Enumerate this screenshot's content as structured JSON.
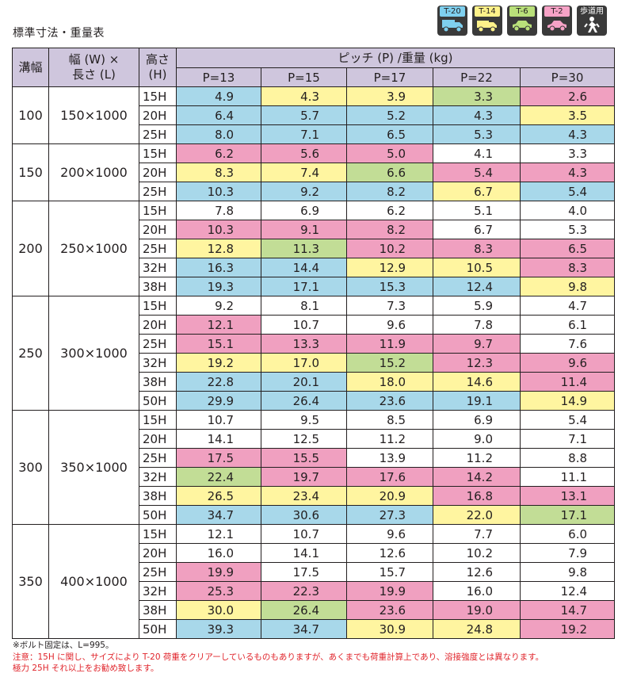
{
  "page_title": "標準寸法・重量表",
  "load_classes": [
    {
      "label": "T-20",
      "color": "#7fd0ef",
      "icon": "truck-icon"
    },
    {
      "label": "T-14",
      "color": "#fff28a",
      "icon": "truck-icon"
    },
    {
      "label": "T-6",
      "color": "#b9e07a",
      "icon": "car-icon"
    },
    {
      "label": "T-2",
      "color": "#f6a2c6",
      "icon": "car-icon"
    },
    {
      "label": "歩道用",
      "color": "#ffffff",
      "icon": "pedestrian-icon"
    }
  ],
  "color_key": {
    "b": "#a8d8ea",
    "y": "#fff5a0",
    "g": "#c2dd96",
    "p": "#f0a0c0",
    "w": "#ffffff"
  },
  "table": {
    "col_width_label": "溝幅",
    "col_size_label_1": "幅 (W) ×",
    "col_size_label_2": "長さ (L)",
    "col_height_label_1": "高さ",
    "col_height_label_2": "(H)",
    "pitch_header": "ピッチ (P) /重量 (kg)",
    "pitches": [
      "P=13",
      "P=15",
      "P=17",
      "P=22",
      "P=30"
    ],
    "groups": [
      {
        "width": "100",
        "size": "150×1000",
        "rows": [
          {
            "h": "15H",
            "values": [
              "4.9",
              "4.3",
              "3.9",
              "3.3",
              "2.6"
            ],
            "colors": [
              "b",
              "y",
              "y",
              "g",
              "p"
            ]
          },
          {
            "h": "20H",
            "values": [
              "6.4",
              "5.7",
              "5.2",
              "4.3",
              "3.5"
            ],
            "colors": [
              "b",
              "b",
              "b",
              "b",
              "y"
            ]
          },
          {
            "h": "25H",
            "values": [
              "8.0",
              "7.1",
              "6.5",
              "5.3",
              "4.3"
            ],
            "colors": [
              "b",
              "b",
              "b",
              "b",
              "b"
            ]
          }
        ]
      },
      {
        "width": "150",
        "size": "200×1000",
        "rows": [
          {
            "h": "15H",
            "values": [
              "6.2",
              "5.6",
              "5.0",
              "4.1",
              "3.3"
            ],
            "colors": [
              "p",
              "p",
              "p",
              "w",
              "w"
            ]
          },
          {
            "h": "20H",
            "values": [
              "8.3",
              "7.4",
              "6.6",
              "5.4",
              "4.3"
            ],
            "colors": [
              "y",
              "y",
              "g",
              "p",
              "p"
            ]
          },
          {
            "h": "25H",
            "values": [
              "10.3",
              "9.2",
              "8.2",
              "6.7",
              "5.4"
            ],
            "colors": [
              "b",
              "b",
              "b",
              "y",
              "b"
            ]
          }
        ]
      },
      {
        "width": "200",
        "size": "250×1000",
        "rows": [
          {
            "h": "15H",
            "values": [
              "7.8",
              "6.9",
              "6.2",
              "5.1",
              "4.0"
            ],
            "colors": [
              "w",
              "w",
              "w",
              "w",
              "w"
            ]
          },
          {
            "h": "20H",
            "values": [
              "10.3",
              "9.1",
              "8.2",
              "6.7",
              "5.3"
            ],
            "colors": [
              "p",
              "p",
              "p",
              "w",
              "w"
            ]
          },
          {
            "h": "25H",
            "values": [
              "12.8",
              "11.3",
              "10.2",
              "8.3",
              "6.5"
            ],
            "colors": [
              "y",
              "g",
              "p",
              "p",
              "p"
            ]
          },
          {
            "h": "32H",
            "values": [
              "16.3",
              "14.4",
              "12.9",
              "10.5",
              "8.3"
            ],
            "colors": [
              "b",
              "b",
              "y",
              "y",
              "p"
            ]
          },
          {
            "h": "38H",
            "values": [
              "19.3",
              "17.1",
              "15.3",
              "12.4",
              "9.8"
            ],
            "colors": [
              "b",
              "b",
              "b",
              "b",
              "y"
            ]
          }
        ]
      },
      {
        "width": "250",
        "size": "300×1000",
        "rows": [
          {
            "h": "15H",
            "values": [
              "9.2",
              "8.1",
              "7.3",
              "5.9",
              "4.7"
            ],
            "colors": [
              "w",
              "w",
              "w",
              "w",
              "w"
            ]
          },
          {
            "h": "20H",
            "values": [
              "12.1",
              "10.7",
              "9.6",
              "7.8",
              "6.1"
            ],
            "colors": [
              "p",
              "w",
              "w",
              "w",
              "w"
            ]
          },
          {
            "h": "25H",
            "values": [
              "15.1",
              "13.3",
              "11.9",
              "9.7",
              "7.6"
            ],
            "colors": [
              "p",
              "p",
              "p",
              "p",
              "w"
            ]
          },
          {
            "h": "32H",
            "values": [
              "19.2",
              "17.0",
              "15.2",
              "12.3",
              "9.6"
            ],
            "colors": [
              "y",
              "y",
              "g",
              "p",
              "p"
            ]
          },
          {
            "h": "38H",
            "values": [
              "22.8",
              "20.1",
              "18.0",
              "14.6",
              "11.4"
            ],
            "colors": [
              "b",
              "b",
              "y",
              "y",
              "p"
            ]
          },
          {
            "h": "50H",
            "values": [
              "29.9",
              "26.4",
              "23.6",
              "19.1",
              "14.9"
            ],
            "colors": [
              "b",
              "b",
              "b",
              "b",
              "y"
            ]
          }
        ]
      },
      {
        "width": "300",
        "size": "350×1000",
        "rows": [
          {
            "h": "15H",
            "values": [
              "10.7",
              "9.5",
              "8.5",
              "6.9",
              "5.4"
            ],
            "colors": [
              "w",
              "w",
              "w",
              "w",
              "w"
            ]
          },
          {
            "h": "20H",
            "values": [
              "14.1",
              "12.5",
              "11.2",
              "9.0",
              "7.1"
            ],
            "colors": [
              "w",
              "w",
              "w",
              "w",
              "w"
            ]
          },
          {
            "h": "25H",
            "values": [
              "17.5",
              "15.5",
              "13.9",
              "11.2",
              "8.8"
            ],
            "colors": [
              "p",
              "p",
              "w",
              "w",
              "w"
            ]
          },
          {
            "h": "32H",
            "values": [
              "22.4",
              "19.7",
              "17.6",
              "14.2",
              "11.1"
            ],
            "colors": [
              "g",
              "p",
              "p",
              "p",
              "w"
            ]
          },
          {
            "h": "38H",
            "values": [
              "26.5",
              "23.4",
              "20.9",
              "16.8",
              "13.1"
            ],
            "colors": [
              "y",
              "y",
              "y",
              "p",
              "p"
            ]
          },
          {
            "h": "50H",
            "values": [
              "34.7",
              "30.6",
              "27.3",
              "22.0",
              "17.1"
            ],
            "colors": [
              "b",
              "b",
              "b",
              "y",
              "g"
            ]
          }
        ]
      },
      {
        "width": "350",
        "size": "400×1000",
        "rows": [
          {
            "h": "15H",
            "values": [
              "12.1",
              "10.7",
              "9.6",
              "7.7",
              "6.0"
            ],
            "colors": [
              "w",
              "w",
              "w",
              "w",
              "w"
            ]
          },
          {
            "h": "20H",
            "values": [
              "16.0",
              "14.1",
              "12.6",
              "10.2",
              "7.9"
            ],
            "colors": [
              "w",
              "w",
              "w",
              "w",
              "w"
            ]
          },
          {
            "h": "25H",
            "values": [
              "19.9",
              "17.5",
              "15.7",
              "12.6",
              "9.8"
            ],
            "colors": [
              "p",
              "w",
              "w",
              "w",
              "w"
            ]
          },
          {
            "h": "32H",
            "values": [
              "25.3",
              "22.3",
              "19.9",
              "16.0",
              "12.4"
            ],
            "colors": [
              "p",
              "p",
              "p",
              "w",
              "w"
            ]
          },
          {
            "h": "38H",
            "values": [
              "30.0",
              "26.4",
              "23.6",
              "19.0",
              "14.7"
            ],
            "colors": [
              "y",
              "g",
              "p",
              "p",
              "p"
            ]
          },
          {
            "h": "50H",
            "values": [
              "39.3",
              "34.7",
              "30.9",
              "24.8",
              "19.2"
            ],
            "colors": [
              "b",
              "b",
              "y",
              "y",
              "p"
            ]
          }
        ]
      }
    ]
  },
  "notes": {
    "bolt": "※ボルト固定は、L=995。",
    "caution_1": "注意：15H に関し、サイズにより T-20 荷重をクリアーしているものもありますが、あくまでも荷重計算上であり、溶接強度とは異なります。",
    "caution_2": "極力 25H それ以上をお勧め致します。"
  }
}
